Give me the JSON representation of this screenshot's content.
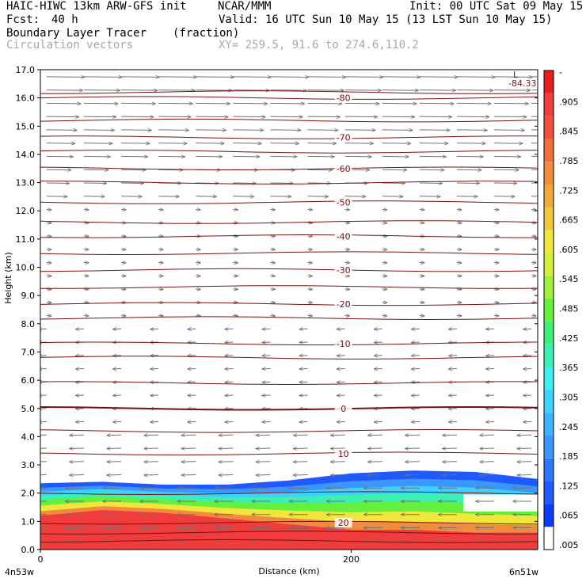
{
  "header": {
    "model": "HAIC-HIWC 13km ARW-GFS init",
    "org": "NCAR/MMM",
    "init": "Init: 00 UTC Sat 09 May 15",
    "fcst_label": "Fcst:",
    "fcst_value": "40 h",
    "valid": "Valid: 16 UTC Sun 10 May 15 (13 LST Sun 10 May 15)",
    "field": "Boundary Layer Tracer",
    "units": "(fraction)",
    "overlay": "Circulation vectors",
    "xy": "XY= 259.5, 91.6 to 274.6,110.2"
  },
  "chart_data": {
    "type": "heatmap",
    "xlabel": "Distance (km)",
    "ylabel": "Height (km)",
    "xlim": [
      0,
      320
    ],
    "ylim": [
      0,
      17
    ],
    "x_ticks": [
      {
        "v": 0,
        "label": "0"
      },
      {
        "v": 200,
        "label": "200"
      }
    ],
    "x_end_labels": {
      "left": "4n53w",
      "right": "6n51w"
    },
    "y_ticks": [
      "0.0",
      "1.0",
      "2.0",
      "3.0",
      "4.0",
      "5.0",
      "6.0",
      "7.0",
      "8.0",
      "9.0",
      "10.0",
      "11.0",
      "12.0",
      "13.0",
      "14.0",
      "15.0",
      "16.0",
      "17.0"
    ],
    "colorbar": {
      "labels": [
        ".005",
        ".065",
        ".125",
        ".185",
        ".245",
        ".305",
        ".365",
        ".425",
        ".485",
        ".545",
        ".605",
        ".665",
        ".725",
        ".785",
        ".845",
        ".905",
        "-"
      ],
      "colors": [
        "#ffffff",
        "#0a3cff",
        "#1e5aff",
        "#2e78ff",
        "#3c96ff",
        "#3cb4ff",
        "#3cd2ff",
        "#3cf0f0",
        "#3cf0b4",
        "#3cf078",
        "#64f03c",
        "#a0f03c",
        "#d2f03c",
        "#f0e63c",
        "#f0c83c",
        "#f0aa3c",
        "#f08c3c",
        "#f06e3c",
        "#f0503c",
        "#f03c3c",
        "#e61e1e"
      ]
    },
    "temperature_isotherms": [
      {
        "label": "-80",
        "y": 16.0
      },
      {
        "label": "-70",
        "y": 14.6
      },
      {
        "label": "-60",
        "y": 13.5
      },
      {
        "label": "-50",
        "y": 12.3
      },
      {
        "label": "-40",
        "y": 11.1
      },
      {
        "label": "-30",
        "y": 9.9
      },
      {
        "label": "-20",
        "y": 8.7
      },
      {
        "label": "-10",
        "y": 7.3
      },
      {
        "label": "0",
        "y": 5.0
      },
      {
        "label": "10",
        "y": 3.4
      },
      {
        "label": "20",
        "y": 0.95
      }
    ],
    "extra_isotherms": [
      16.2,
      15.2,
      14.1,
      13.0,
      11.6,
      10.5,
      9.3,
      8.2,
      6.8,
      5.9,
      4.2,
      2.0,
      0.6,
      0.3
    ],
    "annotations": [
      {
        "label": "L",
        "note": "-84.33"
      }
    ],
    "tracer_region": {
      "deep_red_top_km": [
        1.2,
        1.4,
        1.3,
        1.1,
        0.9,
        0.7,
        0.7,
        0.6,
        0.6
      ],
      "blue_top_km": [
        2.35,
        2.4,
        2.3,
        2.3,
        2.45,
        2.7,
        2.8,
        2.75,
        2.5
      ],
      "x_km": [
        0,
        40,
        80,
        120,
        160,
        200,
        240,
        280,
        320
      ]
    }
  }
}
